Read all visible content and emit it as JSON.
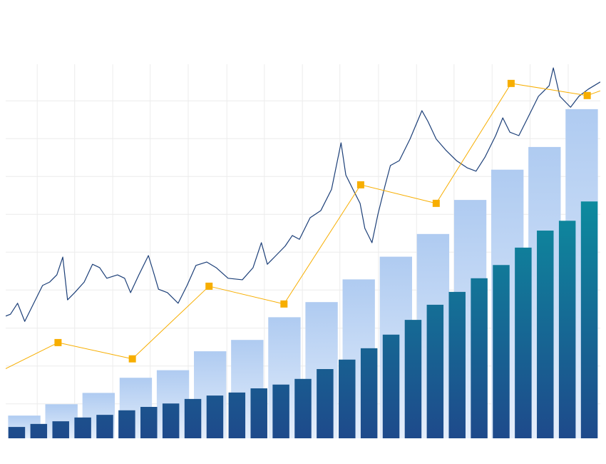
{
  "chart_data": [
    {
      "type": "bar",
      "categories": [
        null,
        null,
        null,
        null,
        null,
        null,
        null,
        null,
        null,
        null,
        null,
        null,
        null,
        null,
        null,
        null
      ],
      "values": [
        6,
        9,
        12,
        16,
        18,
        23,
        26,
        32,
        36,
        42,
        48,
        54,
        63,
        71,
        77,
        87
      ],
      "color": "#afcbf1",
      "color_end": "#e4eefb",
      "ylim": [
        0,
        100
      ],
      "grid": true,
      "xlim": [
        0,
        100
      ],
      "xticks": [
        5.3,
        11.6,
        18.0,
        24.3,
        30.7,
        37.2,
        43.5,
        49.9,
        56.2,
        62.7,
        69.1,
        75.4,
        81.8,
        88.2,
        94.6
      ],
      "yticks": [
        9.1,
        19.1,
        29.1,
        39.2,
        49.2,
        59.2,
        69.2,
        79.2,
        89.2
      ]
    },
    {
      "type": "bar",
      "categories": [
        null,
        null,
        null,
        null,
        null,
        null,
        null,
        null,
        null,
        null,
        null,
        null,
        null,
        null,
        null,
        null,
        null,
        null,
        null,
        null,
        null,
        null,
        null,
        null,
        null,
        null,
        null
      ],
      "values": [
        3.0,
        3.8,
        4.5,
        5.5,
        6.2,
        7.4,
        8.3,
        9.2,
        10.4,
        11.3,
        12.1,
        13.2,
        14.2,
        15.7,
        18.3,
        20.8,
        23.8,
        27.4,
        31.3,
        35.3,
        38.7,
        42.3,
        45.8,
        50.4,
        54.9,
        57.5,
        62.6
      ],
      "color": "#0b91a0",
      "color_end": "#1e4a8b",
      "ylim": [
        0,
        100
      ]
    },
    {
      "type": "line",
      "color": "#1c3f78",
      "xlim": [
        0,
        100
      ],
      "ylim": [
        0,
        100
      ],
      "markers": false,
      "x": [
        0,
        0.8,
        2.0,
        3.2,
        4.4,
        6.2,
        7.4,
        8.6,
        9.6,
        10.4,
        11.6,
        13.2,
        14.6,
        15.8,
        17.0,
        18.8,
        20.0,
        21.0,
        22.4,
        24.0,
        24.8,
        25.7,
        27.2,
        29.0,
        30.5,
        32.0,
        33.8,
        35.4,
        37.4,
        39.8,
        41.6,
        43.0,
        44.0,
        45.2,
        47.0,
        48.2,
        49.4,
        51.2,
        53.0,
        54.8,
        56.4,
        57.2,
        58.4,
        59.6,
        60.4,
        61.6,
        62.6,
        63.8,
        64.7,
        66.2,
        68.0,
        70.0,
        71.0,
        72.4,
        74.0,
        75.8,
        77.6,
        79.1,
        80.6,
        82.4,
        83.6,
        84.8,
        86.3,
        87.8,
        89.6,
        91.4,
        92.1,
        93.2,
        95.0,
        96.4,
        98.0,
        100
      ],
      "values": [
        32.3,
        32.8,
        35.7,
        30.9,
        34.7,
        40.4,
        41.3,
        43.2,
        47.9,
        36.6,
        38.5,
        41.3,
        46.0,
        45.1,
        42.3,
        43.2,
        42.3,
        38.5,
        43.2,
        48.3,
        44.2,
        39.4,
        38.5,
        35.7,
        40.4,
        45.7,
        46.6,
        45.1,
        42.3,
        41.9,
        45.1,
        51.7,
        46.0,
        47.9,
        50.8,
        53.6,
        52.6,
        58.3,
        60.2,
        65.8,
        78.1,
        69.6,
        65.8,
        62.1,
        55.5,
        51.7,
        59.2,
        66.8,
        72.1,
        73.4,
        79.1,
        86.6,
        83.8,
        79.1,
        76.2,
        73.4,
        71.5,
        70.6,
        74.3,
        80.0,
        84.7,
        80.9,
        80.0,
        84.7,
        90.4,
        93.2,
        97.9,
        90.4,
        87.5,
        90.4,
        92.3,
        94.2
      ]
    },
    {
      "type": "line",
      "color": "#f7ae00",
      "xlim": [
        0,
        100
      ],
      "ylim": [
        0,
        100
      ],
      "markers": true,
      "x": [
        -5,
        8.8,
        21.3,
        34.2,
        46.8,
        59.7,
        72.4,
        85.0,
        97.8,
        110
      ],
      "values": [
        14.5,
        25.3,
        21.0,
        40.2,
        35.5,
        67.0,
        62.1,
        93.8,
        90.6,
        97.5
      ]
    }
  ]
}
